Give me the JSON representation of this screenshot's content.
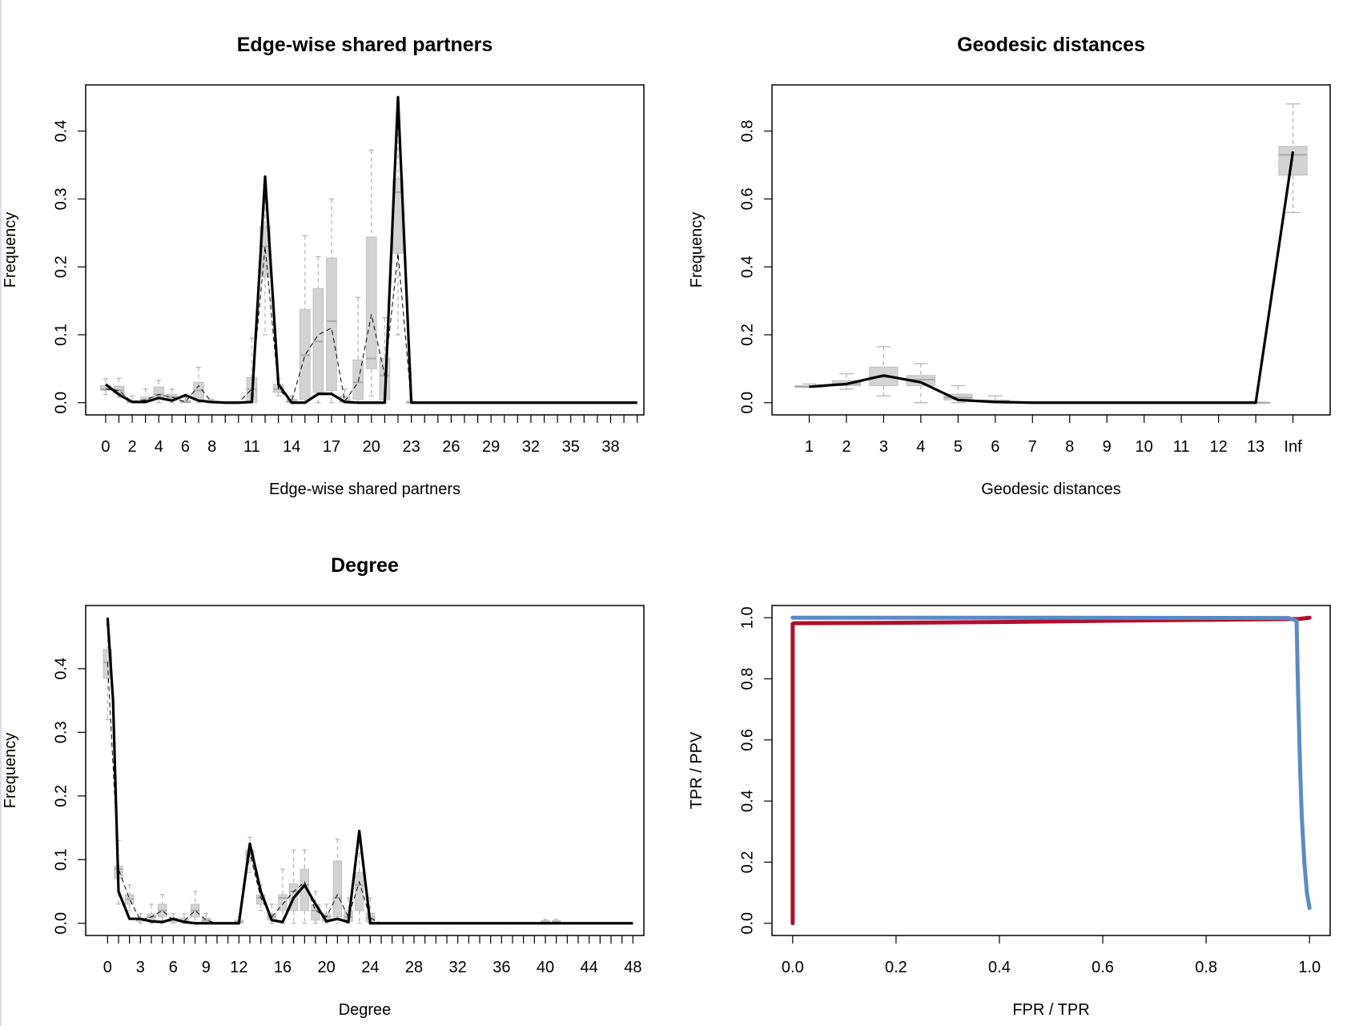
{
  "colors": {
    "box_fill": "#d3d3d3",
    "box_stroke": "#c0c0c0",
    "whisker": "#b3b3b3",
    "observed_line": "#000000",
    "roc_red": "#b0102a",
    "roc_blue": "#5b8bc4"
  },
  "chart_data": [
    {
      "type": "box",
      "title": "Edge-wise shared partners",
      "xlabel": "Edge-wise shared partners",
      "ylabel": "Frequency",
      "ylim": [
        0,
        0.45
      ],
      "yticks": [
        "0.0",
        "0.1",
        "0.2",
        "0.3",
        "0.4"
      ],
      "xticks": [
        "0",
        "2",
        "4",
        "6",
        "8",
        "11",
        "14",
        "17",
        "20",
        "23",
        "26",
        "29",
        "32",
        "35",
        "38"
      ],
      "x_categories": [
        "0",
        "1",
        "2",
        "3",
        "4",
        "5",
        "6",
        "7",
        "8",
        "9",
        "10",
        "11",
        "12",
        "13",
        "14",
        "15",
        "16",
        "17",
        "18",
        "19",
        "20",
        "21",
        "22",
        "23",
        "24",
        "25",
        "26",
        "27",
        "28",
        "29",
        "30",
        "31",
        "32",
        "33",
        "34",
        "35",
        "36",
        "37",
        "38",
        "39",
        "40"
      ],
      "boxes": [
        {
          "x": 0,
          "lo": 0.012,
          "q1": 0.018,
          "med": 0.02,
          "q3": 0.025,
          "hi": 0.035
        },
        {
          "x": 1,
          "lo": 0.008,
          "q1": 0.014,
          "med": 0.018,
          "q3": 0.024,
          "hi": 0.036
        },
        {
          "x": 2,
          "lo": 0,
          "q1": 0,
          "med": 0.001,
          "q3": 0.003,
          "hi": 0.01
        },
        {
          "x": 3,
          "lo": 0,
          "q1": 0.001,
          "med": 0.004,
          "q3": 0.008,
          "hi": 0.02
        },
        {
          "x": 4,
          "lo": 0,
          "q1": 0.005,
          "med": 0.012,
          "q3": 0.023,
          "hi": 0.033
        },
        {
          "x": 5,
          "lo": 0,
          "q1": 0.004,
          "med": 0.008,
          "q3": 0.012,
          "hi": 0.02
        },
        {
          "x": 6,
          "lo": 0,
          "q1": 0,
          "med": 0.001,
          "q3": 0.003,
          "hi": 0.008
        },
        {
          "x": 7,
          "lo": 0,
          "q1": 0.004,
          "med": 0.018,
          "q3": 0.03,
          "hi": 0.052
        },
        {
          "x": 8,
          "lo": 0,
          "q1": 0,
          "med": 0,
          "q3": 0.002,
          "hi": 0.005
        },
        {
          "x": 11,
          "lo": 0,
          "q1": 0,
          "med": 0.02,
          "q3": 0.037,
          "hi": 0.095
        },
        {
          "x": 12,
          "lo": 0.1,
          "q1": 0.185,
          "med": 0.23,
          "q3": 0.26,
          "hi": 0.32
        },
        {
          "x": 13,
          "lo": 0.01,
          "q1": 0.015,
          "med": 0.02,
          "q3": 0.027,
          "hi": 0.035
        },
        {
          "x": 14,
          "lo": 0,
          "q1": 0,
          "med": 0.002,
          "q3": 0.005,
          "hi": 0.01
        },
        {
          "x": 15,
          "lo": 0,
          "q1": 0.005,
          "med": 0.07,
          "q3": 0.137,
          "hi": 0.246
        },
        {
          "x": 16,
          "lo": 0,
          "q1": 0.015,
          "med": 0.09,
          "q3": 0.168,
          "hi": 0.215
        },
        {
          "x": 17,
          "lo": 0,
          "q1": 0.018,
          "med": 0.12,
          "q3": 0.213,
          "hi": 0.3
        },
        {
          "x": 18,
          "lo": 0,
          "q1": 0,
          "med": 0.002,
          "q3": 0.01,
          "hi": 0.02
        },
        {
          "x": 19,
          "lo": 0,
          "q1": 0.005,
          "med": 0.03,
          "q3": 0.063,
          "hi": 0.155
        },
        {
          "x": 20,
          "lo": 0.01,
          "q1": 0.05,
          "med": 0.065,
          "q3": 0.244,
          "hi": 0.372
        },
        {
          "x": 21,
          "lo": 0,
          "q1": 0.004,
          "med": 0.04,
          "q3": 0.065,
          "hi": 0.125
        },
        {
          "x": 22,
          "lo": 0.1,
          "q1": 0.22,
          "med": 0.31,
          "q3": 0.33,
          "hi": 0.44
        },
        {
          "x": 23,
          "lo": 0,
          "q1": 0,
          "med": 0,
          "q3": 0.002,
          "hi": 0.004
        }
      ],
      "observed": {
        "x": [
          0,
          1,
          2,
          3,
          4,
          5,
          6,
          7,
          8,
          9,
          10,
          11,
          12,
          13,
          14,
          15,
          16,
          17,
          18,
          19,
          20,
          21,
          22,
          23,
          24,
          25,
          26,
          27,
          28,
          29,
          30,
          31,
          32,
          33,
          34,
          35,
          36,
          37,
          38,
          39,
          40
        ],
        "y": [
          0.027,
          0.012,
          0.001,
          0.001,
          0.007,
          0.003,
          0.011,
          0.003,
          0.001,
          0,
          0,
          0.001,
          0.333,
          0.027,
          0,
          0,
          0.013,
          0.013,
          0.001,
          0,
          0,
          0,
          0.45,
          0,
          0,
          0,
          0,
          0,
          0,
          0,
          0,
          0,
          0,
          0,
          0,
          0,
          0,
          0,
          0,
          0,
          0
        ]
      },
      "median_line": {
        "x": [
          0,
          1,
          2,
          3,
          4,
          5,
          6,
          7,
          8,
          9,
          10,
          11,
          12,
          13,
          14,
          15,
          16,
          17,
          18,
          19,
          20,
          21,
          22,
          23,
          24,
          25,
          26,
          27,
          28,
          29,
          30,
          31,
          32,
          33,
          34,
          35,
          36,
          37,
          38,
          39,
          40
        ],
        "y": [
          0.02,
          0.018,
          0.001,
          0.004,
          0.012,
          0.008,
          0.001,
          0.025,
          0,
          0,
          0,
          0.02,
          0.23,
          0.02,
          0.002,
          0.07,
          0.1,
          0.11,
          0.002,
          0.03,
          0.13,
          0.04,
          0.22,
          0,
          0,
          0,
          0,
          0,
          0,
          0,
          0,
          0,
          0,
          0,
          0,
          0,
          0,
          0,
          0,
          0,
          0
        ]
      }
    },
    {
      "type": "box",
      "title": "Geodesic distances",
      "xlabel": "Geodesic distances",
      "ylabel": "Frequency",
      "ylim": [
        0,
        0.9
      ],
      "yticks": [
        "0.0",
        "0.2",
        "0.4",
        "0.6",
        "0.8"
      ],
      "xticks": [
        "1",
        "2",
        "3",
        "4",
        "5",
        "6",
        "7",
        "8",
        "9",
        "10",
        "11",
        "12",
        "13",
        "Inf"
      ],
      "boxes": [
        {
          "x": 1,
          "lo": 0.045,
          "q1": 0.046,
          "med": 0.047,
          "q3": 0.05,
          "hi": 0.055
        },
        {
          "x": 2,
          "lo": 0.04,
          "q1": 0.05,
          "med": 0.055,
          "q3": 0.065,
          "hi": 0.085
        },
        {
          "x": 3,
          "lo": 0.02,
          "q1": 0.05,
          "med": 0.075,
          "q3": 0.105,
          "hi": 0.165
        },
        {
          "x": 4,
          "lo": 0,
          "q1": 0.05,
          "med": 0.068,
          "q3": 0.08,
          "hi": 0.115
        },
        {
          "x": 5,
          "lo": 0,
          "q1": 0.008,
          "med": 0.015,
          "q3": 0.025,
          "hi": 0.05
        },
        {
          "x": 6,
          "lo": 0,
          "q1": 0.002,
          "med": 0.004,
          "q3": 0.008,
          "hi": 0.02
        },
        {
          "x": 13,
          "lo": 0,
          "q1": 0,
          "med": 0,
          "q3": 0.001,
          "hi": 0.002
        },
        {
          "x": 14,
          "lo": 0.56,
          "q1": 0.67,
          "med": 0.73,
          "q3": 0.755,
          "hi": 0.88
        }
      ],
      "observed": {
        "x": [
          1,
          2,
          3,
          4,
          5,
          6,
          7,
          8,
          9,
          10,
          11,
          12,
          13,
          14
        ],
        "y": [
          0.047,
          0.055,
          0.08,
          0.06,
          0.008,
          0.002,
          0,
          0,
          0,
          0,
          0,
          0,
          0,
          0.74
        ]
      },
      "median_line": {
        "x": [],
        "y": []
      }
    },
    {
      "type": "box",
      "title": "Degree",
      "xlabel": "Degree",
      "ylabel": "Frequency",
      "ylim": [
        0,
        0.48
      ],
      "yticks": [
        "0.0",
        "0.1",
        "0.2",
        "0.3",
        "0.4"
      ],
      "xticks": [
        "0",
        "3",
        "6",
        "9",
        "12",
        "16",
        "20",
        "24",
        "28",
        "32",
        "36",
        "40",
        "44",
        "48"
      ],
      "boxes": [
        {
          "x": 0,
          "lo": 0.32,
          "q1": 0.385,
          "med": 0.41,
          "q3": 0.43,
          "hi": 0.47
        },
        {
          "x": 1,
          "lo": 0.03,
          "q1": 0.07,
          "med": 0.085,
          "q3": 0.09,
          "hi": 0.13
        },
        {
          "x": 2,
          "lo": 0.02,
          "q1": 0.03,
          "med": 0.038,
          "q3": 0.045,
          "hi": 0.06
        },
        {
          "x": 3,
          "lo": 0,
          "q1": 0.003,
          "med": 0.005,
          "q3": 0.007,
          "hi": 0.015
        },
        {
          "x": 4,
          "lo": 0,
          "q1": 0.005,
          "med": 0.01,
          "q3": 0.015,
          "hi": 0.03
        },
        {
          "x": 5,
          "lo": 0,
          "q1": 0.01,
          "med": 0.02,
          "q3": 0.03,
          "hi": 0.045
        },
        {
          "x": 6,
          "lo": 0,
          "q1": 0.002,
          "med": 0.005,
          "q3": 0.008,
          "hi": 0.015
        },
        {
          "x": 7,
          "lo": 0,
          "q1": 0.002,
          "med": 0.004,
          "q3": 0.008,
          "hi": 0.015
        },
        {
          "x": 8,
          "lo": 0,
          "q1": 0.01,
          "med": 0.02,
          "q3": 0.03,
          "hi": 0.05
        },
        {
          "x": 9,
          "lo": 0,
          "q1": 0.002,
          "med": 0.005,
          "q3": 0.008,
          "hi": 0.015
        },
        {
          "x": 12,
          "lo": 0,
          "q1": 0,
          "med": 0.002,
          "q3": 0.005,
          "hi": 0.01
        },
        {
          "x": 13,
          "lo": 0.08,
          "q1": 0.1,
          "med": 0.11,
          "q3": 0.115,
          "hi": 0.135
        },
        {
          "x": 14,
          "lo": 0.02,
          "q1": 0.03,
          "med": 0.04,
          "q3": 0.045,
          "hi": 0.06
        },
        {
          "x": 15,
          "lo": 0,
          "q1": 0.005,
          "med": 0.01,
          "q3": 0.015,
          "hi": 0.03
        },
        {
          "x": 16,
          "lo": 0,
          "q1": 0.02,
          "med": 0.04,
          "q3": 0.045,
          "hi": 0.085
        },
        {
          "x": 17,
          "lo": 0,
          "q1": 0.02,
          "med": 0.05,
          "q3": 0.062,
          "hi": 0.115
        },
        {
          "x": 18,
          "lo": 0,
          "q1": 0.02,
          "med": 0.06,
          "q3": 0.085,
          "hi": 0.115
        },
        {
          "x": 19,
          "lo": 0,
          "q1": 0.005,
          "med": 0.02,
          "q3": 0.03,
          "hi": 0.05
        },
        {
          "x": 20,
          "lo": 0,
          "q1": 0.003,
          "med": 0.01,
          "q3": 0.015,
          "hi": 0.03
        },
        {
          "x": 21,
          "lo": 0,
          "q1": 0.01,
          "med": 0.04,
          "q3": 0.098,
          "hi": 0.132
        },
        {
          "x": 22,
          "lo": 0,
          "q1": 0.003,
          "med": 0.01,
          "q3": 0.02,
          "hi": 0.04
        },
        {
          "x": 23,
          "lo": 0,
          "q1": 0.02,
          "med": 0.06,
          "q3": 0.08,
          "hi": 0.11
        },
        {
          "x": 24,
          "lo": 0,
          "q1": 0.002,
          "med": 0.008,
          "q3": 0.016,
          "hi": 0.04
        },
        {
          "x": 40,
          "lo": 0,
          "q1": 0,
          "med": 0.002,
          "q3": 0.004,
          "hi": 0.006
        },
        {
          "x": 41,
          "lo": 0,
          "q1": 0,
          "med": 0.002,
          "q3": 0.004,
          "hi": 0.006
        }
      ],
      "observed": {
        "x": [
          0,
          0.5,
          1,
          2,
          3,
          4,
          5,
          6,
          7,
          8,
          9,
          10,
          11,
          12,
          13,
          14,
          15,
          16,
          17,
          18,
          19,
          20,
          21,
          22,
          23,
          24,
          25,
          26,
          27,
          28,
          29,
          30,
          31,
          32,
          33,
          34,
          35,
          36,
          37,
          38,
          39,
          40,
          41,
          42,
          43,
          44,
          45,
          46,
          47,
          48
        ],
        "y": [
          0.48,
          0.35,
          0.05,
          0.007,
          0.007,
          0.003,
          0.002,
          0.007,
          0.002,
          0,
          0,
          0,
          0,
          0,
          0.125,
          0.05,
          0.005,
          0.002,
          0.04,
          0.06,
          0.03,
          0.003,
          0.007,
          0.002,
          0.145,
          0,
          0,
          0,
          0,
          0,
          0,
          0,
          0,
          0,
          0,
          0,
          0,
          0,
          0,
          0,
          0,
          0,
          0,
          0,
          0,
          0,
          0,
          0,
          0,
          0
        ]
      },
      "median_line": {
        "x": [
          0,
          1,
          2,
          3,
          4,
          5,
          6,
          7,
          8,
          9,
          10,
          11,
          12,
          13,
          14,
          15,
          16,
          17,
          18,
          19,
          20,
          21,
          22,
          23,
          24,
          25
        ],
        "y": [
          0.41,
          0.085,
          0.038,
          0.005,
          0.01,
          0.02,
          0.005,
          0.004,
          0.02,
          0.005,
          0,
          0,
          0.002,
          0.11,
          0.04,
          0.01,
          0.03,
          0.05,
          0.065,
          0.02,
          0.01,
          0.045,
          0.01,
          0.065,
          0.008,
          0
        ]
      }
    },
    {
      "type": "line",
      "title": "",
      "xlabel": "FPR / TPR",
      "ylabel": "TPR / PPV",
      "xlim": [
        0,
        1
      ],
      "ylim": [
        0,
        1
      ],
      "xticks": [
        "0.0",
        "0.2",
        "0.4",
        "0.6",
        "0.8",
        "1.0"
      ],
      "yticks": [
        "0.0",
        "0.2",
        "0.4",
        "0.6",
        "0.8",
        "1.0"
      ],
      "series": [
        {
          "color_key": "roc_red",
          "x": [
            0,
            0,
            0.003,
            0.16,
            0.4,
            0.6,
            0.8,
            0.98,
            1.0
          ],
          "y": [
            0,
            0.98,
            0.982,
            0.983,
            0.986,
            0.99,
            0.993,
            0.996,
            1.0
          ]
        },
        {
          "color_key": "roc_blue",
          "x": [
            0,
            0.5,
            0.96,
            0.975,
            0.978,
            0.982,
            0.985,
            0.99,
            0.995,
            1.0
          ],
          "y": [
            1.0,
            1.0,
            0.999,
            0.99,
            0.75,
            0.5,
            0.35,
            0.2,
            0.1,
            0.05
          ]
        }
      ]
    }
  ]
}
